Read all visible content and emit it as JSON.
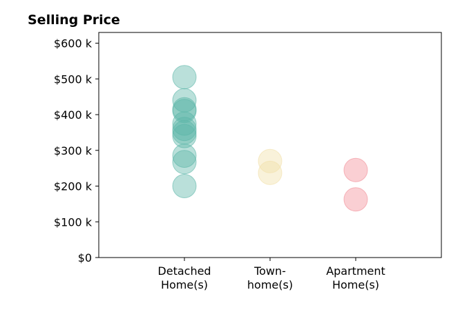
{
  "chart_data": {
    "type": "scatter",
    "title": "Selling Price",
    "xlabel": "",
    "ylabel": "",
    "categories": [
      [
        "Detached",
        "Home(s)"
      ],
      [
        "Town-",
        "home(s)"
      ],
      [
        "Apartment",
        "Home(s)"
      ]
    ],
    "ylim": [
      0,
      630000
    ],
    "yticks": [
      0,
      100000,
      200000,
      300000,
      400000,
      500000,
      600000
    ],
    "ytick_labels": [
      "$0",
      "$100 k",
      "$200 k",
      "$300 k",
      "$400 k",
      "$500 k",
      "$600 k"
    ],
    "grid": false,
    "series": [
      {
        "category": 0,
        "color": "#5bb5a8",
        "values": [
          505000,
          440000,
          415000,
          410000,
          375000,
          360000,
          350000,
          340000,
          285000,
          267000,
          200000
        ]
      },
      {
        "category": 1,
        "color": "#f1dfa8",
        "values": [
          270000,
          237000
        ]
      },
      {
        "category": 2,
        "color": "#f28c96",
        "values": [
          245000,
          163000
        ]
      }
    ]
  }
}
